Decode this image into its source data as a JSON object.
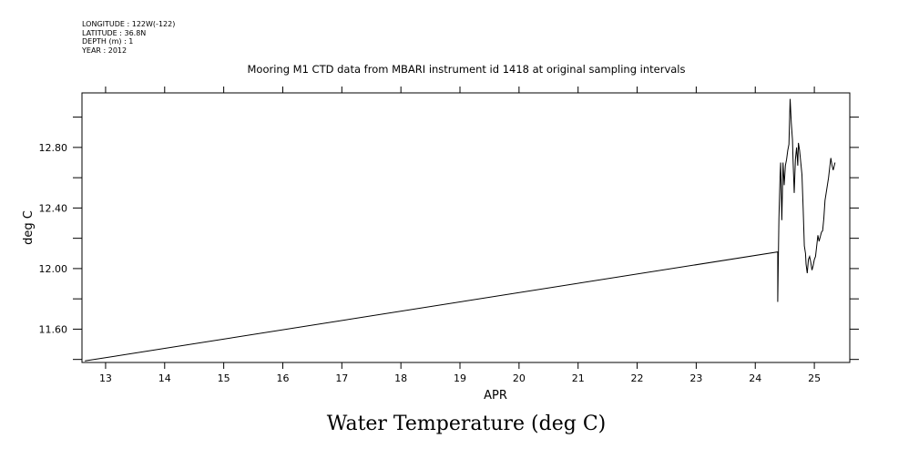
{
  "header": {
    "longitude": "LONGITUDE : 122W(-122)",
    "latitude": "LATITUDE : 36.8N",
    "depth": "DEPTH (m) : 1",
    "year": "YEAR : 2012"
  },
  "plot_title": "Mooring M1 CTD data from MBARI instrument id 1418 at original sampling intervals",
  "figure_title": "Water Temperature (deg C)",
  "chart_data": {
    "type": "line",
    "title": "Mooring M1 CTD data from MBARI instrument id 1418 at original sampling intervals",
    "xlabel": "APR",
    "ylabel": "deg C",
    "xlim": [
      12.6,
      25.6
    ],
    "ylim": [
      11.38,
      13.16
    ],
    "x_ticks": [
      13,
      14,
      15,
      16,
      17,
      18,
      19,
      20,
      21,
      22,
      23,
      24,
      25
    ],
    "x_tick_labels": [
      "13",
      "14",
      "15",
      "16",
      "17",
      "18",
      "19",
      "20",
      "21",
      "22",
      "23",
      "24",
      "25"
    ],
    "y_ticks": [
      11.6,
      12.0,
      12.4,
      12.8
    ],
    "y_tick_labels": [
      "11.60",
      "12.00",
      "12.40",
      "12.80"
    ],
    "y_minor_ticks": [
      11.4,
      11.8,
      12.2,
      12.6,
      13.0
    ],
    "grid": false,
    "series": [
      {
        "color": "#000000",
        "x": [
          12.65,
          24.38,
          24.38,
          24.4,
          24.42,
          24.43,
          24.45,
          24.47,
          24.49,
          24.51,
          24.53,
          24.55,
          24.57,
          24.59,
          24.61,
          24.63,
          24.64,
          24.66,
          24.68,
          24.7,
          24.72,
          24.73,
          24.75,
          24.77,
          24.79,
          24.81,
          24.83,
          24.85,
          24.86,
          24.88,
          24.9,
          24.92,
          24.94,
          24.96,
          24.98,
          25.0,
          25.02,
          25.04,
          25.06,
          25.08,
          25.1,
          25.12,
          25.14,
          25.16,
          25.18,
          25.2,
          25.22,
          25.24,
          25.26,
          25.28,
          25.3,
          25.32,
          25.35
        ],
        "y": [
          11.39,
          12.11,
          11.78,
          12.33,
          12.62,
          12.7,
          12.32,
          12.7,
          12.55,
          12.68,
          12.72,
          12.78,
          12.82,
          13.12,
          12.96,
          12.85,
          12.72,
          12.5,
          12.72,
          12.8,
          12.68,
          12.83,
          12.78,
          12.7,
          12.62,
          12.4,
          12.15,
          12.1,
          12.03,
          11.97,
          12.06,
          12.08,
          12.04,
          11.99,
          12.02,
          12.06,
          12.08,
          12.15,
          12.22,
          12.18,
          12.21,
          12.24,
          12.25,
          12.33,
          12.45,
          12.5,
          12.55,
          12.6,
          12.67,
          12.73,
          12.68,
          12.65,
          12.7
        ]
      }
    ]
  }
}
